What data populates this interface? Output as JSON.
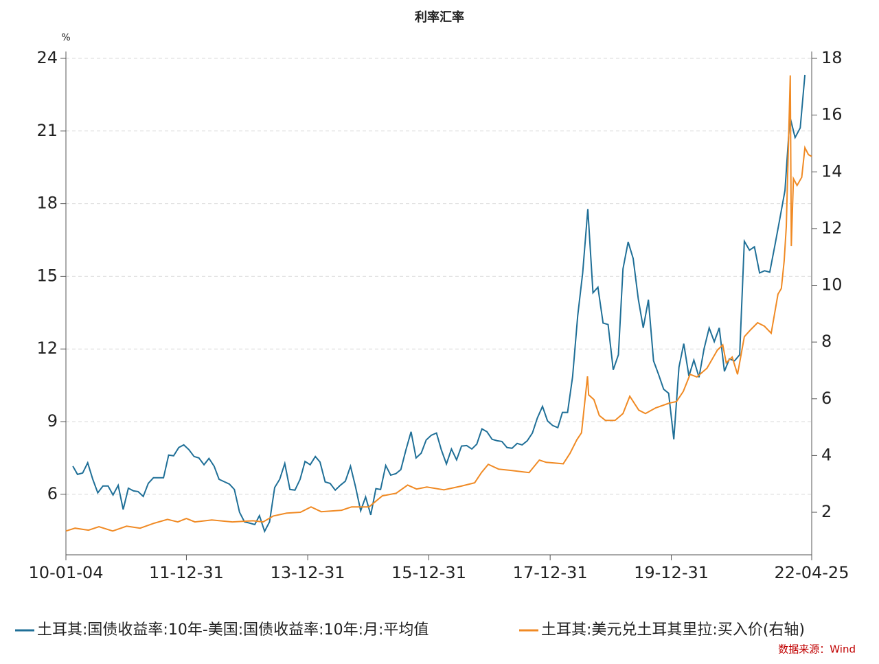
{
  "chart_data": {
    "type": "line",
    "title": "利率汇率",
    "y_label": "%",
    "xlim": [
      "10-01-04",
      "22-04-25"
    ],
    "xticks": [
      "10-01-04",
      "11-12-31",
      "13-12-31",
      "15-12-31",
      "17-12-31",
      "19-12-31",
      "22-04-25"
    ],
    "ylim": [
      3.5,
      24
    ],
    "yticks": [
      6,
      9,
      12,
      15,
      18,
      21,
      24
    ],
    "y2lim": [
      0.5,
      18
    ],
    "y2ticks": [
      2,
      4,
      6,
      8,
      10,
      12,
      14,
      16,
      18
    ],
    "grid": true,
    "legend": "bottom",
    "source": "数据来源：Wind",
    "series": [
      {
        "name": "土耳其:国债收益率:10年-美国:国债收益率:10年:月:平均值",
        "color": "#1f6f97",
        "x": [
          "10-02",
          "10-03",
          "10-04",
          "10-05",
          "10-06",
          "10-07",
          "10-08",
          "10-09",
          "10-10",
          "10-11",
          "10-12",
          "11-01",
          "11-02",
          "11-03",
          "11-04",
          "11-05",
          "11-06",
          "11-07",
          "11-08",
          "11-09",
          "11-10",
          "11-11",
          "11-12",
          "12-01",
          "12-02",
          "12-03",
          "12-04",
          "12-05",
          "12-06",
          "12-07",
          "12-08",
          "12-09",
          "12-10",
          "12-11",
          "12-12",
          "13-01",
          "13-02",
          "13-03",
          "13-04",
          "13-05",
          "13-06",
          "13-07",
          "13-08",
          "13-09",
          "13-10",
          "13-11",
          "13-12",
          "14-01",
          "14-02",
          "14-03",
          "14-04",
          "14-05",
          "14-06",
          "14-07",
          "14-08",
          "14-09",
          "14-10",
          "14-11",
          "14-12",
          "15-01",
          "15-02",
          "15-03",
          "15-04",
          "15-05",
          "15-06",
          "15-07",
          "15-08",
          "15-09",
          "15-10",
          "15-11",
          "15-12",
          "16-01",
          "16-02",
          "16-03",
          "16-04",
          "16-05",
          "16-06",
          "16-07",
          "16-08",
          "16-09",
          "16-10",
          "16-11",
          "16-12",
          "17-01",
          "17-02",
          "17-03",
          "17-04",
          "17-05",
          "17-06",
          "17-07",
          "17-08",
          "17-09",
          "17-10",
          "17-11",
          "17-12",
          "18-01",
          "18-02",
          "18-03",
          "18-04",
          "18-05",
          "18-06",
          "18-07",
          "18-08",
          "18-09",
          "18-10",
          "18-11",
          "18-12",
          "19-01",
          "19-02",
          "19-03",
          "19-04",
          "19-05",
          "19-06",
          "19-07",
          "19-08",
          "19-09",
          "19-10",
          "19-11",
          "19-12",
          "20-01",
          "20-02",
          "20-03",
          "20-04",
          "20-05",
          "20-06",
          "20-07",
          "20-08",
          "20-09",
          "20-10",
          "20-11",
          "20-12",
          "21-01",
          "21-02",
          "21-03",
          "21-04",
          "21-05",
          "21-06",
          "21-07",
          "21-08",
          "21-09",
          "21-10",
          "21-11",
          "21-12",
          "22-01",
          "22-02",
          "22-03"
        ],
        "values": [
          7.16,
          6.82,
          6.88,
          7.3,
          6.62,
          6.06,
          6.34,
          6.34,
          5.97,
          6.37,
          5.37,
          6.25,
          6.14,
          6.11,
          5.91,
          6.45,
          6.68,
          6.68,
          6.68,
          7.62,
          7.59,
          7.93,
          8.04,
          7.84,
          7.56,
          7.5,
          7.22,
          7.48,
          7.16,
          6.62,
          6.52,
          6.42,
          6.2,
          5.26,
          4.86,
          4.81,
          4.75,
          5.12,
          4.47,
          4.86,
          6.28,
          6.62,
          7.27,
          6.2,
          6.17,
          6.62,
          7.36,
          7.22,
          7.56,
          7.33,
          6.51,
          6.45,
          6.17,
          6.37,
          6.54,
          7.16,
          6.31,
          5.32,
          5.89,
          5.15,
          6.23,
          6.2,
          7.19,
          6.79,
          6.85,
          7.02,
          7.84,
          8.58,
          7.5,
          7.7,
          8.24,
          8.44,
          8.53,
          7.84,
          7.25,
          7.87,
          7.42,
          7.99,
          8.01,
          7.87,
          8.07,
          8.7,
          8.58,
          8.27,
          8.21,
          8.18,
          7.93,
          7.9,
          8.1,
          8.04,
          8.21,
          8.53,
          9.15,
          9.63,
          9.03,
          8.84,
          8.75,
          9.38,
          9.38,
          10.85,
          13.38,
          15.14,
          17.78,
          14.32,
          14.55,
          13.07,
          13.01,
          11.14,
          11.76,
          15.31,
          16.42,
          15.74,
          14.06,
          12.87,
          14.03,
          11.51,
          10.95,
          10.34,
          10.17,
          8.27,
          11.25,
          12.22,
          10.88,
          11.54,
          10.83,
          12.0,
          12.87,
          12.3,
          12.87,
          11.08,
          11.59,
          11.51,
          11.76,
          16.45,
          16.08,
          16.22,
          15.14,
          15.23,
          15.17,
          16.28,
          17.38,
          18.55,
          21.59,
          20.73,
          21.13,
          23.32
        ]
      },
      {
        "name": "土耳其:美元兑土耳其里拉:买入价(右轴)",
        "color": "#f08a24",
        "axis": "y2",
        "x": [
          "10-01-04",
          "10-02-28",
          "10-05-20",
          "10-07-22",
          "10-10-13",
          "11-01-05",
          "11-03-27",
          "11-06-18",
          "11-09-08",
          "11-11-09",
          "11-12-31",
          "12-02-20",
          "12-06-01",
          "12-10-03",
          "13-02-04",
          "13-04-06",
          "13-06-07",
          "13-08-27",
          "13-11-17",
          "14-01-20",
          "14-03-22",
          "14-07-23",
          "14-09-22",
          "15-01-04",
          "15-03-26",
          "15-06-17",
          "15-08-25",
          "15-10-18",
          "15-12-19",
          "16-03-31",
          "16-07-12",
          "16-10-02",
          "16-11-12",
          "16-12-23",
          "17-02-23",
          "17-05-15",
          "17-08-26",
          "17-10-27",
          "17-12-07",
          "18-03-20",
          "18-04-30",
          "18-06-10",
          "18-07-08",
          "18-08-13",
          "18-08-20",
          "18-09-21",
          "18-10-23",
          "18-11-29",
          "19-01-26",
          "19-03-15",
          "19-04-25",
          "19-06-18",
          "19-07-28",
          "19-09-28",
          "19-12-19",
          "20-01-31",
          "20-03-12",
          "20-04-22",
          "20-06-02",
          "20-08-02",
          "20-10-03",
          "20-11-05",
          "20-11-26",
          "21-01-01",
          "21-02-02",
          "21-03-15",
          "21-04-23",
          "21-06-03",
          "21-07-14",
          "21-08-24",
          "21-10-04",
          "21-10-24",
          "21-11-10",
          "21-11-23",
          "21-12-17",
          "21-12-23",
          "22-01-05",
          "22-01-27",
          "22-02-24",
          "22-03-15",
          "22-04-05",
          "22-04-25"
        ],
        "values": [
          1.34,
          1.44,
          1.37,
          1.49,
          1.34,
          1.51,
          1.44,
          1.61,
          1.75,
          1.66,
          1.78,
          1.66,
          1.73,
          1.66,
          1.7,
          1.66,
          1.87,
          1.97,
          2.0,
          2.19,
          2.02,
          2.07,
          2.19,
          2.19,
          2.58,
          2.67,
          2.96,
          2.82,
          2.89,
          2.79,
          2.92,
          3.04,
          3.4,
          3.69,
          3.52,
          3.47,
          3.4,
          3.84,
          3.76,
          3.71,
          4.08,
          4.56,
          4.8,
          6.79,
          6.14,
          5.97,
          5.41,
          5.24,
          5.24,
          5.48,
          6.09,
          5.6,
          5.48,
          5.68,
          5.85,
          5.9,
          6.26,
          6.86,
          6.77,
          7.08,
          7.71,
          7.9,
          7.27,
          7.47,
          6.86,
          8.19,
          8.44,
          8.68,
          8.56,
          8.31,
          9.69,
          9.89,
          10.86,
          12.07,
          17.4,
          11.39,
          13.76,
          13.52,
          13.81,
          14.85,
          14.61,
          14.54
        ]
      }
    ]
  }
}
